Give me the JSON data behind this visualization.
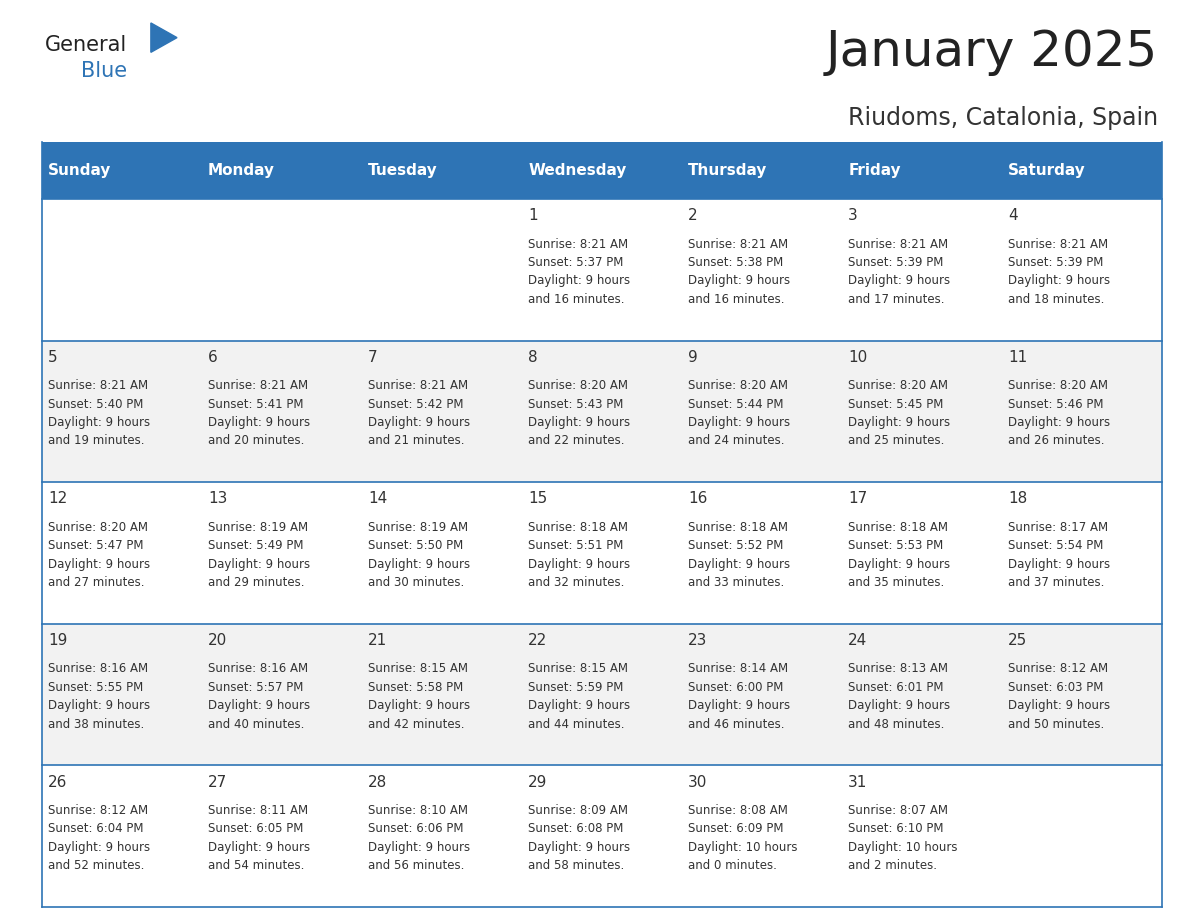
{
  "title": "January 2025",
  "subtitle": "Riudoms, Catalonia, Spain",
  "header_bg": "#2E74B5",
  "header_text_color": "#FFFFFF",
  "weekdays": [
    "Sunday",
    "Monday",
    "Tuesday",
    "Wednesday",
    "Thursday",
    "Friday",
    "Saturday"
  ],
  "odd_row_bg": "#FFFFFF",
  "even_row_bg": "#F2F2F2",
  "cell_border_color": "#2E74B5",
  "calendar": [
    [
      {
        "day": "",
        "sunrise": "",
        "sunset": "",
        "daylight_hrs": "",
        "daylight_min": ""
      },
      {
        "day": "",
        "sunrise": "",
        "sunset": "",
        "daylight_hrs": "",
        "daylight_min": ""
      },
      {
        "day": "",
        "sunrise": "",
        "sunset": "",
        "daylight_hrs": "",
        "daylight_min": ""
      },
      {
        "day": "1",
        "sunrise": "8:21 AM",
        "sunset": "5:37 PM",
        "daylight_hrs": "9",
        "daylight_min": "16"
      },
      {
        "day": "2",
        "sunrise": "8:21 AM",
        "sunset": "5:38 PM",
        "daylight_hrs": "9",
        "daylight_min": "16"
      },
      {
        "day": "3",
        "sunrise": "8:21 AM",
        "sunset": "5:39 PM",
        "daylight_hrs": "9",
        "daylight_min": "17"
      },
      {
        "day": "4",
        "sunrise": "8:21 AM",
        "sunset": "5:39 PM",
        "daylight_hrs": "9",
        "daylight_min": "18"
      }
    ],
    [
      {
        "day": "5",
        "sunrise": "8:21 AM",
        "sunset": "5:40 PM",
        "daylight_hrs": "9",
        "daylight_min": "19"
      },
      {
        "day": "6",
        "sunrise": "8:21 AM",
        "sunset": "5:41 PM",
        "daylight_hrs": "9",
        "daylight_min": "20"
      },
      {
        "day": "7",
        "sunrise": "8:21 AM",
        "sunset": "5:42 PM",
        "daylight_hrs": "9",
        "daylight_min": "21"
      },
      {
        "day": "8",
        "sunrise": "8:20 AM",
        "sunset": "5:43 PM",
        "daylight_hrs": "9",
        "daylight_min": "22"
      },
      {
        "day": "9",
        "sunrise": "8:20 AM",
        "sunset": "5:44 PM",
        "daylight_hrs": "9",
        "daylight_min": "24"
      },
      {
        "day": "10",
        "sunrise": "8:20 AM",
        "sunset": "5:45 PM",
        "daylight_hrs": "9",
        "daylight_min": "25"
      },
      {
        "day": "11",
        "sunrise": "8:20 AM",
        "sunset": "5:46 PM",
        "daylight_hrs": "9",
        "daylight_min": "26"
      }
    ],
    [
      {
        "day": "12",
        "sunrise": "8:20 AM",
        "sunset": "5:47 PM",
        "daylight_hrs": "9",
        "daylight_min": "27"
      },
      {
        "day": "13",
        "sunrise": "8:19 AM",
        "sunset": "5:49 PM",
        "daylight_hrs": "9",
        "daylight_min": "29"
      },
      {
        "day": "14",
        "sunrise": "8:19 AM",
        "sunset": "5:50 PM",
        "daylight_hrs": "9",
        "daylight_min": "30"
      },
      {
        "day": "15",
        "sunrise": "8:18 AM",
        "sunset": "5:51 PM",
        "daylight_hrs": "9",
        "daylight_min": "32"
      },
      {
        "day": "16",
        "sunrise": "8:18 AM",
        "sunset": "5:52 PM",
        "daylight_hrs": "9",
        "daylight_min": "33"
      },
      {
        "day": "17",
        "sunrise": "8:18 AM",
        "sunset": "5:53 PM",
        "daylight_hrs": "9",
        "daylight_min": "35"
      },
      {
        "day": "18",
        "sunrise": "8:17 AM",
        "sunset": "5:54 PM",
        "daylight_hrs": "9",
        "daylight_min": "37"
      }
    ],
    [
      {
        "day": "19",
        "sunrise": "8:16 AM",
        "sunset": "5:55 PM",
        "daylight_hrs": "9",
        "daylight_min": "38"
      },
      {
        "day": "20",
        "sunrise": "8:16 AM",
        "sunset": "5:57 PM",
        "daylight_hrs": "9",
        "daylight_min": "40"
      },
      {
        "day": "21",
        "sunrise": "8:15 AM",
        "sunset": "5:58 PM",
        "daylight_hrs": "9",
        "daylight_min": "42"
      },
      {
        "day": "22",
        "sunrise": "8:15 AM",
        "sunset": "5:59 PM",
        "daylight_hrs": "9",
        "daylight_min": "44"
      },
      {
        "day": "23",
        "sunrise": "8:14 AM",
        "sunset": "6:00 PM",
        "daylight_hrs": "9",
        "daylight_min": "46"
      },
      {
        "day": "24",
        "sunrise": "8:13 AM",
        "sunset": "6:01 PM",
        "daylight_hrs": "9",
        "daylight_min": "48"
      },
      {
        "day": "25",
        "sunrise": "8:12 AM",
        "sunset": "6:03 PM",
        "daylight_hrs": "9",
        "daylight_min": "50"
      }
    ],
    [
      {
        "day": "26",
        "sunrise": "8:12 AM",
        "sunset": "6:04 PM",
        "daylight_hrs": "9",
        "daylight_min": "52"
      },
      {
        "day": "27",
        "sunrise": "8:11 AM",
        "sunset": "6:05 PM",
        "daylight_hrs": "9",
        "daylight_min": "54"
      },
      {
        "day": "28",
        "sunrise": "8:10 AM",
        "sunset": "6:06 PM",
        "daylight_hrs": "9",
        "daylight_min": "56"
      },
      {
        "day": "29",
        "sunrise": "8:09 AM",
        "sunset": "6:08 PM",
        "daylight_hrs": "9",
        "daylight_min": "58"
      },
      {
        "day": "30",
        "sunrise": "8:08 AM",
        "sunset": "6:09 PM",
        "daylight_hrs": "10",
        "daylight_min": "0"
      },
      {
        "day": "31",
        "sunrise": "8:07 AM",
        "sunset": "6:10 PM",
        "daylight_hrs": "10",
        "daylight_min": "2"
      },
      {
        "day": "",
        "sunrise": "",
        "sunset": "",
        "daylight_hrs": "",
        "daylight_min": ""
      }
    ]
  ],
  "logo_general_color": "#222222",
  "logo_blue_color": "#2E74B5",
  "logo_triangle_color": "#2E74B5",
  "title_color": "#222222",
  "subtitle_color": "#333333",
  "text_color": "#333333",
  "title_fontsize": 36,
  "subtitle_fontsize": 17,
  "header_fontsize": 11,
  "day_num_fontsize": 11,
  "cell_text_fontsize": 8.5
}
